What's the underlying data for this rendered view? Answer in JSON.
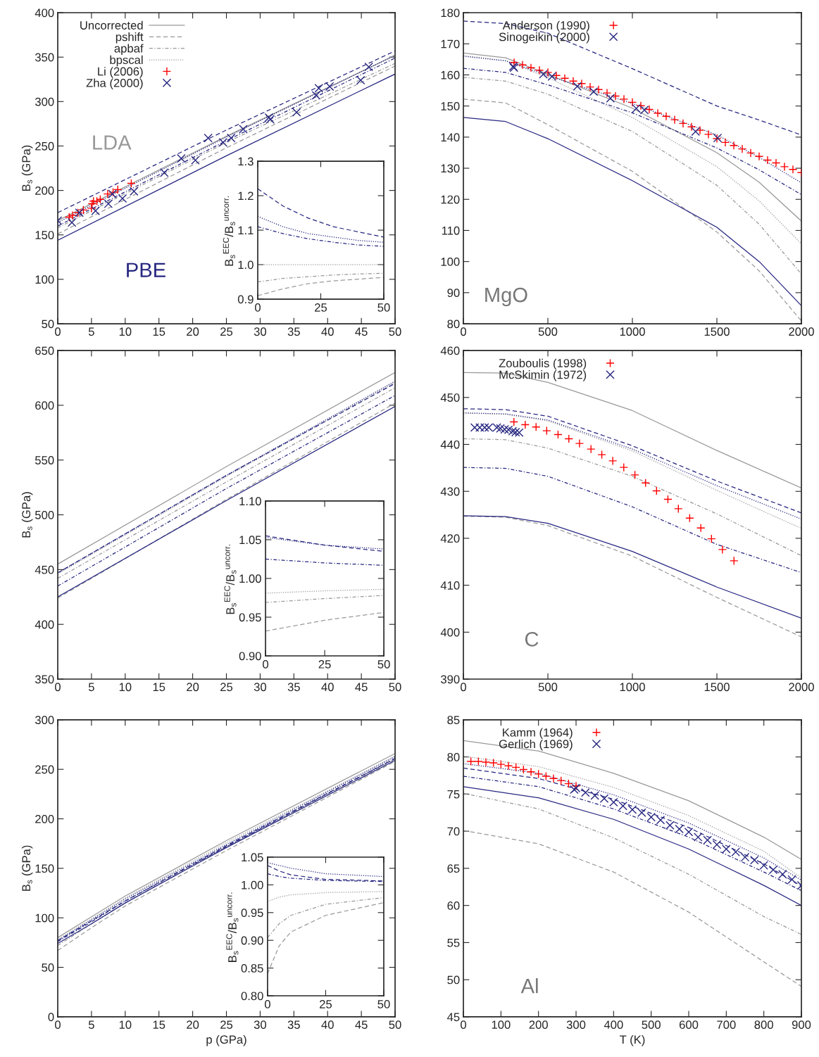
{
  "chart_data": [
    {
      "type": "line",
      "ylabel": "B$_{s}$ (GPa)",
      "xlim": [
        0,
        50
      ],
      "ylim": [
        50,
        400
      ],
      "xticks": [
        0,
        5,
        10,
        15,
        20,
        25,
        30,
        35,
        40,
        45,
        50
      ],
      "yticks": [
        50,
        100,
        150,
        200,
        250,
        300,
        350,
        400
      ],
      "legend": "top left",
      "annotations": [
        "LDA",
        "PBE"
      ],
      "series": [
        {
          "name": "Uncorrected",
          "color": "#999999",
          "line_style": "solid",
          "x": [
            0,
            25,
            50
          ],
          "values": [
            166,
            261,
            352
          ]
        },
        {
          "name": "pshift",
          "color": "#999999",
          "line_style": "dashed",
          "x": [
            0,
            25,
            50
          ],
          "values": [
            151,
            248,
            340
          ]
        },
        {
          "name": "apbaf",
          "color": "#999999",
          "line_style": "dashdot",
          "x": [
            0,
            25,
            50
          ],
          "values": [
            158,
            254,
            343
          ]
        },
        {
          "name": "bpscal",
          "color": "#999999",
          "line_style": "dotted",
          "x": [
            0,
            25,
            50
          ],
          "values": [
            166,
            261,
            352
          ]
        },
        {
          "color": "#262680",
          "line_style": "solid",
          "x": [
            0,
            25,
            50
          ],
          "values": [
            144,
            239,
            331
          ]
        },
        {
          "color": "#262680",
          "line_style": "dashed",
          "x": [
            0,
            25,
            50
          ],
          "values": [
            175,
            268,
            357
          ]
        },
        {
          "color": "#262680",
          "line_style": "dashdot",
          "x": [
            0,
            25,
            50
          ],
          "values": [
            160,
            256,
            349
          ]
        },
        {
          "color": "#262680",
          "line_style": "dotted",
          "x": [
            0,
            25,
            50
          ],
          "values": [
            164,
            260,
            352
          ]
        },
        {
          "name": "Li (2006)",
          "type": "scatter",
          "marker": "plus",
          "color": "#ff0000",
          "x": [
            1.7,
            2.2,
            3.0,
            3.8,
            5.0,
            5.1,
            5.3,
            5.8,
            6.3,
            7.4,
            8.2,
            8.9,
            10.9
          ],
          "values": [
            170,
            172,
            175,
            178,
            180,
            185,
            188,
            188,
            190,
            196,
            198,
            201,
            208
          ]
        },
        {
          "name": "Zha (2000)",
          "type": "scatter",
          "marker": "cross",
          "color": "#262680",
          "x": [
            0,
            2.1,
            3.2,
            5.6,
            7.5,
            8.1,
            9.6,
            11.3,
            15.8,
            18.3,
            20.4,
            22.3,
            24.5,
            25.7,
            27.5,
            31.3,
            31.5,
            35.4,
            38.3,
            38.7,
            40.3,
            44.9,
            46.1
          ],
          "values": [
            166,
            164,
            175,
            177,
            185,
            196,
            191,
            199,
            220,
            236,
            234,
            259,
            254,
            259,
            269,
            282,
            280,
            288,
            307,
            315,
            317,
            324,
            339
          ]
        }
      ]
    },
    {
      "type": "line",
      "ylabel": "B$_{s}$$^{EEC}$/B$_{s}$$^{uncorr.}$",
      "xlim": [
        0,
        50
      ],
      "ylim": [
        0.9,
        1.3
      ],
      "xticks": [
        0,
        25,
        50
      ],
      "yticks": [
        {
          "value": 0.9,
          "label": "0.9"
        },
        {
          "value": 1.0,
          "label": "1.0"
        },
        {
          "value": 1.1,
          "label": "1.1"
        },
        {
          "value": 1.2,
          "label": "1.2"
        },
        {
          "value": 1.3,
          "label": "1.3"
        }
      ],
      "series": [
        {
          "color": "#262680",
          "line_style": "dashed",
          "x": [
            0,
            10,
            20,
            30,
            40,
            50
          ],
          "values": [
            1.22,
            1.17,
            1.135,
            1.11,
            1.095,
            1.08
          ]
        },
        {
          "color": "#262680",
          "line_style": "dotted",
          "x": [
            0,
            10,
            20,
            30,
            40,
            50
          ],
          "values": [
            1.14,
            1.11,
            1.09,
            1.08,
            1.07,
            1.065
          ]
        },
        {
          "color": "#262680",
          "line_style": "dashdot",
          "x": [
            0,
            10,
            20,
            30,
            40,
            50
          ],
          "values": [
            1.11,
            1.09,
            1.075,
            1.065,
            1.057,
            1.053
          ]
        },
        {
          "color": "#999999",
          "line_style": "dotted",
          "x": [
            0,
            10,
            20,
            30,
            40,
            50
          ],
          "values": [
            1.0,
            1.0,
            1.0,
            1.0,
            1.0,
            1.0
          ]
        },
        {
          "color": "#999999",
          "line_style": "dashdot",
          "x": [
            0,
            10,
            20,
            30,
            40,
            50
          ],
          "values": [
            0.95,
            0.96,
            0.965,
            0.97,
            0.973,
            0.975
          ]
        },
        {
          "color": "#999999",
          "line_style": "dashed",
          "x": [
            0,
            10,
            20,
            30,
            40,
            50
          ],
          "values": [
            0.91,
            0.93,
            0.945,
            0.953,
            0.958,
            0.963
          ]
        }
      ]
    },
    {
      "type": "line",
      "xlim": [
        0,
        2000
      ],
      "ylim": [
        80,
        180
      ],
      "xticks": [
        0,
        500,
        1000,
        1500,
        2000
      ],
      "yticks": [
        80,
        90,
        100,
        110,
        120,
        130,
        140,
        150,
        160,
        170,
        180
      ],
      "legend": "top left",
      "annotations": [
        "MgO"
      ],
      "series": [
        {
          "color": "#999999",
          "line_style": "solid",
          "x": [
            0,
            250,
            500,
            1000,
            1500,
            1750,
            2000
          ],
          "values": [
            167.0,
            165.5,
            160.2,
            149.3,
            135.0,
            125.5,
            113.0
          ]
        },
        {
          "color": "#999999",
          "line_style": "dashed",
          "x": [
            0,
            250,
            500,
            1000,
            1500,
            1750,
            2000
          ],
          "values": [
            152.2,
            151.0,
            144.0,
            129.0,
            109.5,
            97.0,
            80.9
          ]
        },
        {
          "color": "#999999",
          "line_style": "dashdot",
          "x": [
            0,
            250,
            500,
            1000,
            1500,
            1750,
            2000
          ],
          "values": [
            159.2,
            158.0,
            153.8,
            141.8,
            124.5,
            112.0,
            96.0
          ]
        },
        {
          "color": "#999999",
          "line_style": "dotted",
          "x": [
            0,
            250,
            500,
            1000,
            1500,
            1750,
            2000
          ],
          "values": [
            166.2,
            164.6,
            159.1,
            146.3,
            130.5,
            119.5,
            105.7
          ]
        },
        {
          "color": "#262680",
          "line_style": "solid",
          "x": [
            0,
            250,
            500,
            1000,
            1500,
            1750,
            2000
          ],
          "values": [
            146.3,
            145.0,
            139.5,
            126.0,
            111.0,
            100.0,
            85.8
          ]
        },
        {
          "color": "#262680",
          "line_style": "dashed",
          "x": [
            0,
            250,
            500,
            1000,
            1500,
            1750,
            2000
          ],
          "values": [
            177.3,
            176.5,
            173.4,
            162.0,
            150.0,
            145.5,
            140.7
          ]
        },
        {
          "color": "#262680",
          "line_style": "dashdot",
          "x": [
            0,
            250,
            500,
            1000,
            1500,
            1750,
            2000
          ],
          "values": [
            162.1,
            160.8,
            156.8,
            147.8,
            136.5,
            129.5,
            121.5
          ]
        },
        {
          "color": "#262680",
          "line_style": "dotted",
          "x": [
            0,
            250,
            500,
            1000,
            1500,
            1750,
            2000
          ],
          "values": [
            166.0,
            164.5,
            159.8,
            150.8,
            140.7,
            133.5,
            125.3
          ]
        },
        {
          "name": "Anderson (1990)",
          "type": "scatter",
          "marker": "plus",
          "color": "#ff0000",
          "x": [
            300,
            350,
            400,
            450,
            500,
            550,
            600,
            650,
            700,
            750,
            800,
            850,
            900,
            950,
            1000,
            1050,
            1100,
            1150,
            1200,
            1250,
            1300,
            1350,
            1400,
            1450,
            1500,
            1550,
            1600,
            1650,
            1700,
            1750,
            1800,
            1850,
            1900,
            1950,
            2000
          ],
          "values": [
            164.0,
            163.2,
            162.3,
            161.5,
            160.8,
            159.8,
            158.9,
            158.0,
            157.2,
            156.1,
            155.3,
            154.2,
            153.2,
            152.2,
            151.2,
            150.1,
            148.9,
            147.7,
            146.7,
            145.6,
            144.4,
            143.3,
            142.2,
            140.9,
            139.5,
            138.3,
            137.3,
            136.2,
            134.9,
            133.8,
            132.6,
            131.7,
            130.5,
            129.6,
            128.6
          ]
        },
        {
          "name": "Sinogeikin (2000)",
          "type": "scatter",
          "marker": "cross",
          "color": "#262680",
          "x": [
            295,
            299,
            473,
            524,
            674,
            771,
            870,
            1023,
            1071,
            1374,
            1504
          ],
          "values": [
            162.7,
            162.3,
            160.2,
            159.5,
            156.3,
            154.6,
            152.5,
            149.2,
            148.7,
            141.8,
            139.7
          ]
        }
      ]
    },
    {
      "type": "line",
      "ylabel": "B$_{s}$ (GPa)",
      "xlim": [
        0,
        50
      ],
      "ylim": [
        350,
        650
      ],
      "xticks": [
        0,
        5,
        10,
        15,
        20,
        25,
        30,
        35,
        40,
        45,
        50
      ],
      "yticks": [
        350,
        400,
        450,
        500,
        550,
        600,
        650
      ],
      "series": [
        {
          "color": "#999999",
          "line_style": "solid",
          "x": [
            0,
            25,
            50
          ],
          "values": [
            455,
            544,
            630
          ]
        },
        {
          "color": "#999999",
          "line_style": "dashed",
          "x": [
            0,
            25,
            50
          ],
          "values": [
            424,
            514,
            602
          ]
        },
        {
          "color": "#999999",
          "line_style": "dashdot",
          "x": [
            0,
            25,
            50
          ],
          "values": [
            442,
            530,
            616
          ]
        },
        {
          "color": "#999999",
          "line_style": "dotted",
          "x": [
            0,
            25,
            50
          ],
          "values": [
            446,
            535,
            621
          ]
        },
        {
          "color": "#262680",
          "line_style": "solid",
          "x": [
            0,
            25,
            50
          ],
          "values": [
            425,
            513,
            599
          ]
        },
        {
          "color": "#262680",
          "line_style": "dashed",
          "x": [
            0,
            25,
            50
          ],
          "values": [
            447,
            536,
            620
          ]
        },
        {
          "color": "#262680",
          "line_style": "dashdot",
          "x": [
            0,
            25,
            50
          ],
          "values": [
            435,
            524,
            609
          ]
        },
        {
          "color": "#262680",
          "line_style": "dotted",
          "x": [
            0,
            25,
            50
          ],
          "values": [
            447,
            536,
            622
          ]
        }
      ]
    },
    {
      "type": "line",
      "ylabel": "B$_{s}$$^{EEC}$/B$_{s}$$^{uncorr.}$",
      "xlim": [
        0,
        50
      ],
      "ylim": [
        0.9,
        1.1
      ],
      "xticks": [
        0,
        25,
        50
      ],
      "yticks": [
        {
          "value": 0.9,
          "label": "0.90"
        },
        0.95,
        {
          "value": 1.0,
          "label": "1.00"
        },
        1.05,
        {
          "value": 1.1,
          "label": "1.10"
        }
      ],
      "series": [
        {
          "color": "#262680",
          "line_style": "dashed",
          "x": [
            0,
            25,
            50
          ],
          "values": [
            1.055,
            1.043,
            1.035
          ]
        },
        {
          "color": "#262680",
          "line_style": "dotted",
          "x": [
            0,
            25,
            50
          ],
          "values": [
            1.053,
            1.043,
            1.038
          ]
        },
        {
          "color": "#262680",
          "line_style": "dashdot",
          "x": [
            0,
            25,
            50
          ],
          "values": [
            1.025,
            1.02,
            1.017
          ]
        },
        {
          "color": "#999999",
          "line_style": "dotted",
          "x": [
            0,
            25,
            50
          ],
          "values": [
            0.981,
            0.984,
            0.986
          ]
        },
        {
          "color": "#999999",
          "line_style": "dashdot",
          "x": [
            0,
            25,
            50
          ],
          "values": [
            0.969,
            0.974,
            0.978
          ]
        },
        {
          "color": "#999999",
          "line_style": "dashed",
          "x": [
            0,
            25,
            50
          ],
          "values": [
            0.932,
            0.946,
            0.956
          ]
        }
      ]
    },
    {
      "type": "line",
      "xlim": [
        0,
        2000
      ],
      "ylim": [
        390,
        460
      ],
      "xticks": [
        0,
        500,
        1000,
        1500,
        2000
      ],
      "yticks": [
        390,
        400,
        410,
        420,
        430,
        440,
        450,
        460
      ],
      "legend": "top left",
      "annotations": [
        "C"
      ],
      "series": [
        {
          "color": "#999999",
          "line_style": "solid",
          "x": [
            0,
            250,
            500,
            1000,
            1500,
            2000
          ],
          "values": [
            455.3,
            455.2,
            453.2,
            447.2,
            438.7,
            430.7
          ]
        },
        {
          "color": "#999999",
          "line_style": "dashed",
          "x": [
            0,
            250,
            500,
            1000,
            1500,
            2000
          ],
          "values": [
            424.7,
            424.5,
            422.7,
            416.2,
            407.4,
            399.0
          ]
        },
        {
          "color": "#999999",
          "line_style": "dashdot",
          "x": [
            0,
            250,
            500,
            1000,
            1500,
            2000
          ],
          "values": [
            441.2,
            441.0,
            439.2,
            433.2,
            425.2,
            416.3
          ]
        },
        {
          "color": "#999999",
          "line_style": "dotted",
          "x": [
            0,
            250,
            500,
            1000,
            1500,
            2000
          ],
          "values": [
            446.7,
            446.4,
            445.0,
            438.6,
            430.2,
            422.1
          ]
        },
        {
          "color": "#262680",
          "line_style": "solid",
          "x": [
            0,
            250,
            500,
            1000,
            1500,
            2000
          ],
          "values": [
            424.8,
            424.6,
            423.2,
            417.2,
            409.6,
            403.0
          ]
        },
        {
          "color": "#262680",
          "line_style": "dashed",
          "x": [
            0,
            250,
            500,
            1000,
            1500,
            2000
          ],
          "values": [
            447.6,
            447.4,
            446.0,
            439.7,
            432.2,
            425.4
          ]
        },
        {
          "color": "#262680",
          "line_style": "dashdot",
          "x": [
            0,
            250,
            500,
            1000,
            1500,
            2000
          ],
          "values": [
            435.1,
            434.9,
            433.2,
            426.7,
            418.7,
            412.7
          ]
        },
        {
          "color": "#262680",
          "line_style": "dotted",
          "x": [
            0,
            250,
            500,
            1000,
            1500,
            2000
          ],
          "values": [
            446.7,
            446.5,
            445.2,
            439.0,
            431.2,
            424.1
          ]
        },
        {
          "name": "Zouboulis (1998)",
          "type": "scatter",
          "marker": "plus",
          "color": "#ff0000",
          "x": [
            299,
            366,
            430,
            493,
            560,
            624,
            687,
            755,
            819,
            884,
            949,
            1015,
            1078,
            1143,
            1210,
            1272,
            1339,
            1405,
            1468,
            1533,
            1601
          ],
          "values": [
            444.8,
            444.2,
            443.7,
            442.9,
            442.1,
            441.2,
            440.2,
            439.0,
            437.8,
            436.5,
            435.1,
            433.5,
            431.8,
            430.1,
            428.3,
            426.3,
            424.3,
            422.2,
            419.9,
            417.6,
            415.2
          ]
        },
        {
          "name": "McSkimin (1972)",
          "type": "scatter",
          "marker": "cross",
          "color": "#262680",
          "x": [
            67,
            97,
            126,
            150,
            198,
            219,
            244,
            267,
            291,
            309,
            330
          ],
          "values": [
            443.6,
            443.6,
            443.6,
            443.6,
            443.6,
            443.4,
            443.2,
            443.1,
            442.8,
            442.6,
            442.5
          ]
        }
      ]
    },
    {
      "type": "line",
      "xlabel": "p (GPa)",
      "ylabel": "B$_{s}$ (GPa)",
      "xlim": [
        0,
        50
      ],
      "ylim": [
        0,
        300
      ],
      "xticks": [
        0,
        5,
        10,
        15,
        20,
        25,
        30,
        35,
        40,
        45,
        50
      ],
      "yticks": [
        0,
        50,
        100,
        150,
        200,
        250,
        300
      ],
      "series": [
        {
          "color": "#999999",
          "line_style": "solid",
          "x": [
            0,
            5,
            10,
            25,
            50
          ],
          "values": [
            80,
            101,
            122,
            178,
            266
          ]
        },
        {
          "color": "#999999",
          "line_style": "dashed",
          "x": [
            0,
            5,
            10,
            25,
            50
          ],
          "values": [
            67,
            90,
            112,
            168,
            258
          ]
        },
        {
          "color": "#999999",
          "line_style": "dashdot",
          "x": [
            0,
            5,
            10,
            25,
            50
          ],
          "values": [
            72,
            94,
            115,
            172,
            260
          ]
        },
        {
          "color": "#999999",
          "line_style": "dotted",
          "x": [
            0,
            5,
            10,
            25,
            50
          ],
          "values": [
            78,
            99,
            120,
            176,
            263
          ]
        },
        {
          "color": "#262680",
          "line_style": "solid",
          "x": [
            0,
            5,
            10,
            25,
            50
          ],
          "values": [
            74,
            94,
            115,
            171,
            259
          ]
        },
        {
          "color": "#262680",
          "line_style": "dashed",
          "x": [
            0,
            5,
            10,
            25,
            50
          ],
          "values": [
            77,
            97,
            117,
            173,
            261
          ]
        },
        {
          "color": "#262680",
          "line_style": "dashdot",
          "x": [
            0,
            5,
            10,
            25,
            50
          ],
          "values": [
            76,
            96,
            117,
            172,
            261
          ]
        },
        {
          "color": "#262680",
          "line_style": "dotted",
          "x": [
            0,
            5,
            10,
            25,
            50
          ],
          "values": [
            77,
            98,
            119,
            174,
            263
          ]
        }
      ]
    },
    {
      "type": "line",
      "ylabel": "B$_{s}$$^{EEC}$/B$_{s}$$^{uncorr.}$",
      "xlim": [
        0,
        50
      ],
      "ylim": [
        0.8,
        1.05
      ],
      "xticks": [
        0,
        25,
        50
      ],
      "yticks": [
        {
          "value": 0.8,
          "label": "0.80"
        },
        0.85,
        {
          "value": 0.9,
          "label": "0.90"
        },
        0.95,
        {
          "value": 1.0,
          "label": "1.00"
        },
        1.05
      ],
      "series": [
        {
          "color": "#262680",
          "line_style": "dashed",
          "x": [
            0,
            5,
            10,
            25,
            50
          ],
          "values": [
            1.035,
            1.025,
            1.018,
            1.01,
            1.007
          ]
        },
        {
          "color": "#262680",
          "line_style": "dotted",
          "x": [
            0,
            5,
            10,
            25,
            50
          ],
          "values": [
            1.04,
            1.035,
            1.03,
            1.02,
            1.015
          ]
        },
        {
          "color": "#262680",
          "line_style": "dashdot",
          "x": [
            0,
            5,
            10,
            25,
            50
          ],
          "values": [
            1.02,
            1.015,
            1.012,
            1.008,
            1.006
          ]
        },
        {
          "color": "#999999",
          "line_style": "dotted",
          "x": [
            0,
            5,
            10,
            25,
            50
          ],
          "values": [
            0.97,
            0.978,
            0.982,
            0.986,
            0.988
          ]
        },
        {
          "color": "#999999",
          "line_style": "dashdot",
          "x": [
            0,
            5,
            10,
            25,
            50
          ],
          "values": [
            0.905,
            0.93,
            0.945,
            0.965,
            0.977
          ]
        },
        {
          "color": "#999999",
          "line_style": "dashed",
          "x": [
            0,
            5,
            10,
            25,
            50
          ],
          "values": [
            0.84,
            0.89,
            0.915,
            0.945,
            0.968
          ]
        }
      ]
    },
    {
      "type": "line",
      "xlabel": "T (K)",
      "xlim": [
        0,
        900
      ],
      "ylim": [
        45,
        85
      ],
      "xticks": [
        0,
        100,
        200,
        300,
        400,
        500,
        600,
        700,
        800,
        900
      ],
      "yticks": [
        45,
        50,
        55,
        60,
        65,
        70,
        75,
        80,
        85
      ],
      "legend": "top left",
      "annotations": [
        "Al"
      ],
      "series": [
        {
          "color": "#999999",
          "line_style": "solid",
          "x": [
            0,
            200,
            400,
            600,
            800,
            900
          ],
          "values": [
            82.2,
            80.8,
            77.8,
            74.1,
            69.2,
            66.2
          ]
        },
        {
          "color": "#999999",
          "line_style": "dashed",
          "x": [
            0,
            200,
            400,
            600,
            800,
            900
          ],
          "values": [
            70.1,
            68.3,
            64.5,
            59.1,
            52.4,
            49.1
          ]
        },
        {
          "color": "#999999",
          "line_style": "dashdot",
          "x": [
            0,
            200,
            400,
            600,
            800,
            900
          ],
          "values": [
            75.1,
            73.0,
            69.1,
            64.2,
            58.5,
            56.1
          ]
        },
        {
          "color": "#999999",
          "line_style": "dotted",
          "x": [
            0,
            200,
            400,
            600,
            800,
            900
          ],
          "values": [
            80.1,
            78.7,
            75.9,
            72.1,
            67.3,
            63.7
          ]
        },
        {
          "color": "#262680",
          "line_style": "solid",
          "x": [
            0,
            200,
            400,
            600,
            800,
            900
          ],
          "values": [
            76.0,
            74.5,
            71.6,
            67.6,
            62.7,
            60.0
          ]
        },
        {
          "color": "#262680",
          "line_style": "dashed",
          "x": [
            0,
            200,
            400,
            600,
            800,
            900
          ],
          "values": [
            78.5,
            77.1,
            74.3,
            70.5,
            65.6,
            62.6
          ]
        },
        {
          "color": "#262680",
          "line_style": "dashdot",
          "x": [
            0,
            200,
            400,
            600,
            800,
            900
          ],
          "values": [
            77.4,
            76.0,
            73.0,
            69.2,
            64.5,
            62.0
          ]
        },
        {
          "color": "#262680",
          "line_style": "dotted",
          "x": [
            0,
            200,
            400,
            600,
            800,
            900
          ],
          "values": [
            79.1,
            77.8,
            74.9,
            71.1,
            66.4,
            63.4
          ]
        },
        {
          "name": "Kamm (1964)",
          "type": "scatter",
          "marker": "plus",
          "color": "#ff0000",
          "x": [
            20,
            40,
            60,
            80,
            100,
            120,
            140,
            160,
            180,
            200,
            220,
            240,
            260,
            280,
            300
          ],
          "values": [
            79.4,
            79.4,
            79.3,
            79.2,
            79.0,
            78.8,
            78.6,
            78.3,
            78.0,
            77.7,
            77.4,
            77.1,
            76.8,
            76.4,
            76.1
          ]
        },
        {
          "name": "Gerlich (1969)",
          "type": "scatter",
          "marker": "cross",
          "color": "#262680",
          "x": [
            295,
            300,
            325,
            350,
            375,
            400,
            425,
            450,
            475,
            500,
            525,
            550,
            575,
            600,
            625,
            650,
            675,
            700,
            725,
            750,
            775,
            800,
            825,
            850,
            875,
            900
          ],
          "values": [
            75.6,
            75.8,
            75.2,
            74.8,
            74.4,
            73.9,
            73.4,
            72.9,
            72.5,
            71.9,
            71.5,
            70.8,
            70.3,
            69.9,
            69.2,
            68.8,
            68.2,
            67.6,
            67.2,
            66.5,
            66.1,
            65.4,
            64.8,
            64.2,
            63.5,
            62.7
          ]
        }
      ]
    }
  ]
}
